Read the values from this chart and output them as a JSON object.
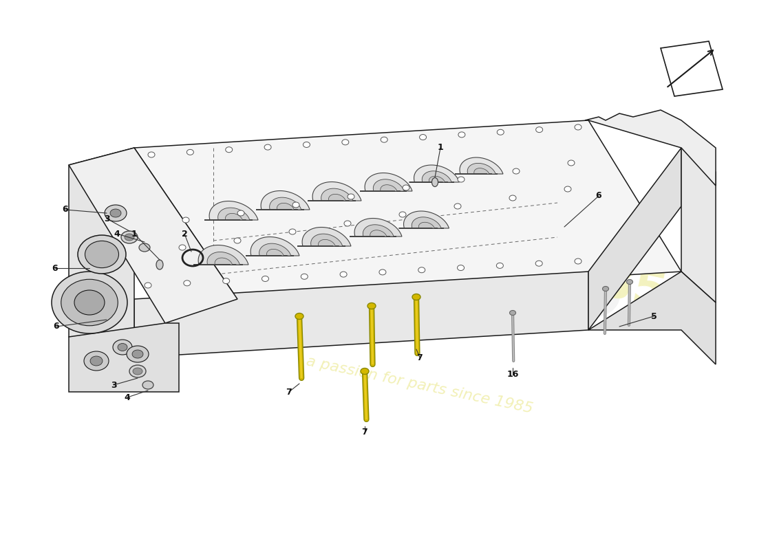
{
  "background_color": "#ffffff",
  "line_color": "#1a1a1a",
  "fill_light": "#f8f8f8",
  "fill_mid": "#eeeeee",
  "fill_dark": "#e0e0e0",
  "bolt_yellow": "#d4b800",
  "bolt_yellow2": "#c8a800",
  "watermark_text": "a passion for parts since 1985",
  "watermark_color": "#f0eeaa",
  "label_fs": 9,
  "figsize": [
    11.0,
    8.0
  ],
  "dpi": 100
}
